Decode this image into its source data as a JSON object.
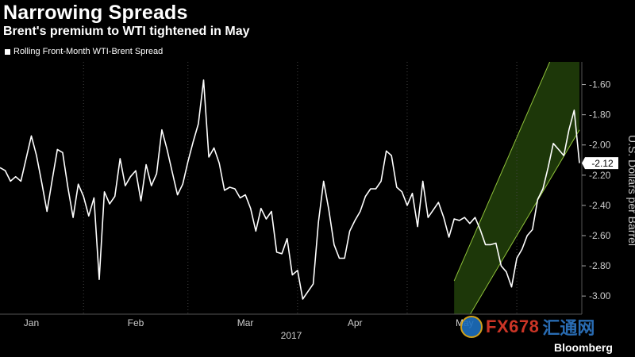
{
  "header": {
    "title": "Narrowing Spreads",
    "subtitle": "Brent's premium to WTI tightened in May"
  },
  "brand": {
    "name": "Bloomberg",
    "watermark_text": "FX678",
    "watermark_cn": "汇通网"
  },
  "colors": {
    "background": "#000000",
    "line": "#ffffff",
    "channel_fill": "#1f3a0a",
    "channel_stroke": "#8fc23a",
    "axis_text": "#cccccc"
  },
  "chart_data": {
    "type": "line",
    "ylabel": "U.S. Dollars per Barrel",
    "xlabel": "2017",
    "ylim": [
      -3.12,
      -1.45
    ],
    "y_ticks": [
      -1.6,
      -1.8,
      -2.0,
      -2.2,
      -2.4,
      -2.6,
      -2.8,
      -3.0
    ],
    "y_tick_labels": [
      "-1.60",
      "-1.80",
      "-2.00",
      "-2.20",
      "-2.40",
      "-2.60",
      "-2.80",
      "-3.00"
    ],
    "x_tick_labels": [
      "Jan",
      "Feb",
      "Mar",
      "Apr",
      "May"
    ],
    "x_tick_index": [
      6,
      26,
      47,
      68,
      89
    ],
    "last_value_label": "-2.12",
    "series": [
      {
        "name": "Rolling Front-Month WTI-Brent Spread",
        "values": [
          -2.15,
          -2.17,
          -2.24,
          -2.21,
          -2.24,
          -2.09,
          -1.94,
          -2.07,
          -2.25,
          -2.44,
          -2.23,
          -2.03,
          -2.05,
          -2.28,
          -2.48,
          -2.26,
          -2.34,
          -2.47,
          -2.35,
          -2.89,
          -2.31,
          -2.39,
          -2.34,
          -2.09,
          -2.27,
          -2.21,
          -2.17,
          -2.37,
          -2.13,
          -2.27,
          -2.19,
          -1.9,
          -2.03,
          -2.18,
          -2.33,
          -2.26,
          -2.11,
          -1.98,
          -1.86,
          -1.57,
          -2.08,
          -2.02,
          -2.12,
          -2.3,
          -2.28,
          -2.29,
          -2.35,
          -2.33,
          -2.42,
          -2.57,
          -2.42,
          -2.49,
          -2.44,
          -2.71,
          -2.72,
          -2.62,
          -2.86,
          -2.83,
          -3.02,
          -2.97,
          -2.92,
          -2.51,
          -2.24,
          -2.43,
          -2.66,
          -2.75,
          -2.75,
          -2.57,
          -2.5,
          -2.44,
          -2.34,
          -2.29,
          -2.29,
          -2.24,
          -2.04,
          -2.07,
          -2.28,
          -2.31,
          -2.4,
          -2.32,
          -2.54,
          -2.24,
          -2.48,
          -2.43,
          -2.38,
          -2.48,
          -2.61,
          -2.49,
          -2.5,
          -2.48,
          -2.52,
          -2.48,
          -2.56,
          -2.66,
          -2.66,
          -2.65,
          -2.8,
          -2.84,
          -2.94,
          -2.75,
          -2.69,
          -2.6,
          -2.56,
          -2.36,
          -2.29,
          -2.15,
          -1.99,
          -2.03,
          -2.07,
          -1.9,
          -1.77,
          -2.12
        ]
      }
    ],
    "channel": {
      "description": "rising trend channel",
      "start_index": 87,
      "end_index": 111,
      "lower_start": -3.3,
      "lower_end": -1.9,
      "upper_start": -2.9,
      "upper_end": -1.0
    }
  }
}
